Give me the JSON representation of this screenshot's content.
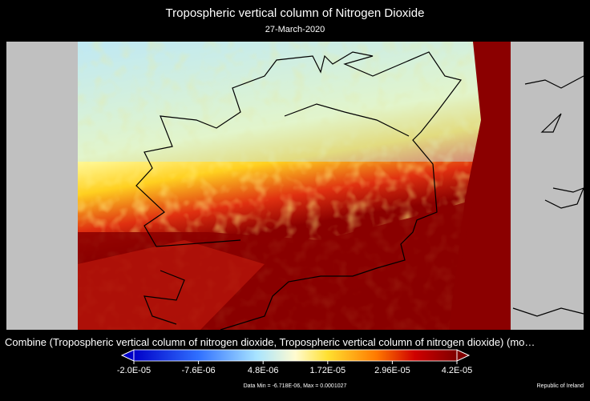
{
  "header": {
    "title": "Tropospheric vertical column of Nitrogen Dioxide",
    "date": "27-March-2020"
  },
  "caption": "Combine (Tropospheric vertical column of nitrogen dioxide, Tropospheric vertical column of nitrogen dioxide) (mo…",
  "colorbar": {
    "range": [
      -2e-05,
      4.2e-05
    ],
    "ticks": [
      {
        "value": -2e-05,
        "label": "-2.0E-05"
      },
      {
        "value": -7.6e-06,
        "label": "-7.6E-06"
      },
      {
        "value": 4.8e-06,
        "label": "4.8E-06"
      },
      {
        "value": 1.72e-05,
        "label": "1.72E-05"
      },
      {
        "value": 2.96e-05,
        "label": "2.96E-05"
      },
      {
        "value": 4.2e-05,
        "label": "4.2E-05"
      }
    ]
  },
  "footer": {
    "stats": "Data Min = -6.718E-06, Max = 0.0001027",
    "region": "Republic of Ireland"
  }
}
